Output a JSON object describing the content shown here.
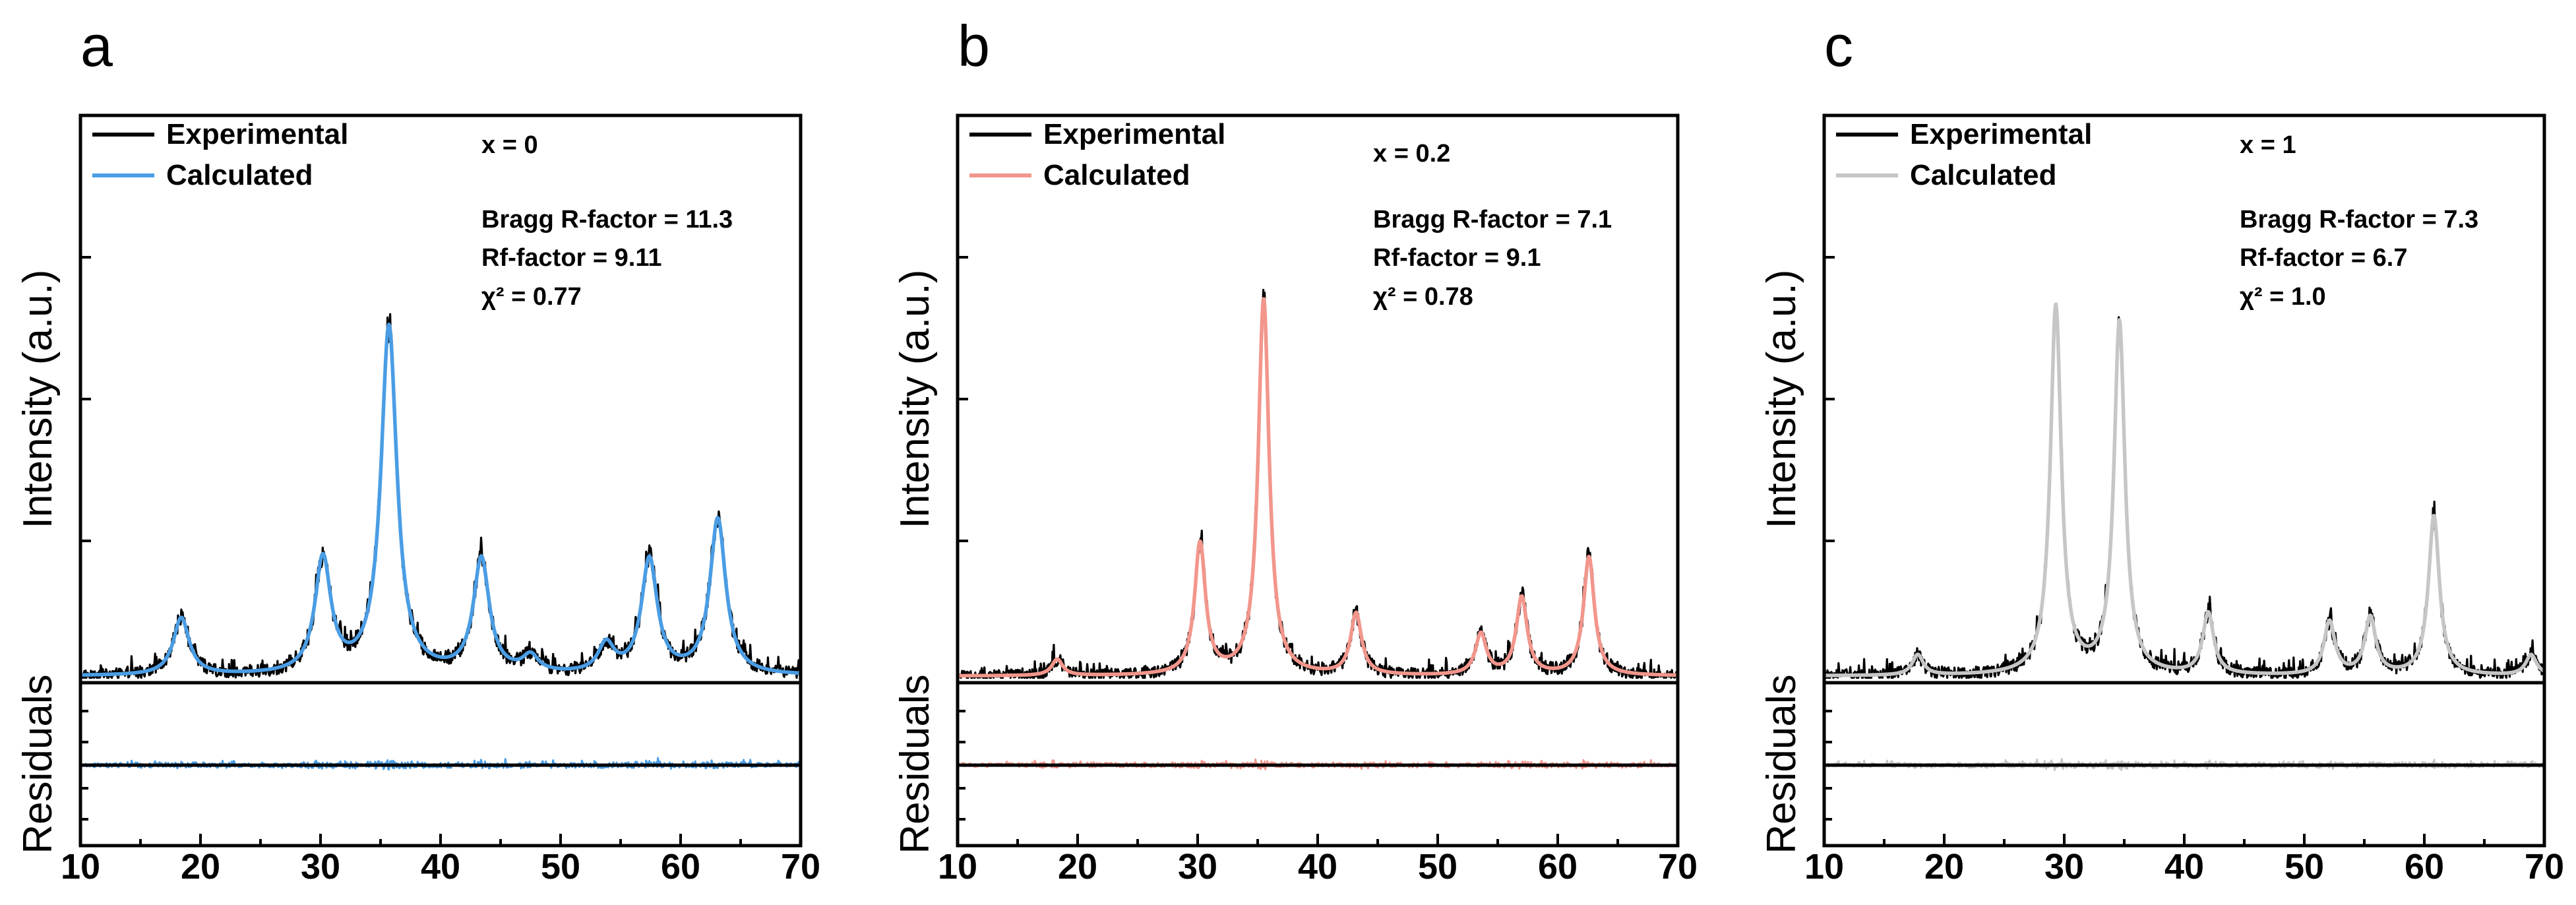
{
  "chart_data": [
    {
      "type": "line",
      "panel": "a",
      "ylabel_top": "Intensity (a.u.)",
      "ylabel_bottom": "Residuals",
      "xlim": [
        10,
        70
      ],
      "xticks": [
        10,
        20,
        30,
        40,
        50,
        60,
        70
      ],
      "legend": [
        {
          "name": "Experimental",
          "color": "#000000"
        },
        {
          "name": "Calculated",
          "color": "#4a9de4"
        }
      ],
      "stats": {
        "composition": "x = 0",
        "bragg": "Bragg R-factor = 11.3",
        "rf": "Rf-factor = 9.11",
        "chi": "χ² = 0.77"
      },
      "calc_color": "#4a9de4",
      "peaks": [
        {
          "pos": 18.4,
          "height": 0.14,
          "width": 0.8
        },
        {
          "pos": 30.2,
          "height": 0.28,
          "width": 0.8
        },
        {
          "pos": 35.7,
          "height": 0.85,
          "width": 0.8
        },
        {
          "pos": 43.4,
          "height": 0.28,
          "width": 0.8
        },
        {
          "pos": 47.5,
          "height": 0.04,
          "width": 0.8
        },
        {
          "pos": 53.8,
          "height": 0.07,
          "width": 0.8
        },
        {
          "pos": 57.4,
          "height": 0.28,
          "width": 0.8
        },
        {
          "pos": 63.1,
          "height": 0.38,
          "width": 0.8
        }
      ]
    },
    {
      "type": "line",
      "panel": "b",
      "ylabel_top": "Intensity (a.u.)",
      "ylabel_bottom": "Residuals",
      "xlim": [
        10,
        70
      ],
      "xticks": [
        10,
        20,
        30,
        40,
        50,
        60,
        70
      ],
      "legend": [
        {
          "name": "Experimental",
          "color": "#000000"
        },
        {
          "name": "Calculated",
          "color": "#f2968c"
        }
      ],
      "stats": {
        "composition": "x = 0.2",
        "bragg": "Bragg R-factor = 7.1",
        "rf": "Rf-factor = 9.1",
        "chi": "χ² = 0.78"
      },
      "calc_color": "#f2968c",
      "peaks": [
        {
          "pos": 18.3,
          "height": 0.04,
          "width": 0.55
        },
        {
          "pos": 30.2,
          "height": 0.32,
          "width": 0.55
        },
        {
          "pos": 35.5,
          "height": 0.92,
          "width": 0.55
        },
        {
          "pos": 43.2,
          "height": 0.15,
          "width": 0.55
        },
        {
          "pos": 53.6,
          "height": 0.1,
          "width": 0.55
        },
        {
          "pos": 57.0,
          "height": 0.19,
          "width": 0.55
        },
        {
          "pos": 62.6,
          "height": 0.29,
          "width": 0.55
        }
      ]
    },
    {
      "type": "line",
      "panel": "c",
      "ylabel_top": "Intensity (a.u.)",
      "ylabel_bottom": "Residuals",
      "xlim": [
        10,
        70
      ],
      "xticks": [
        10,
        20,
        30,
        40,
        50,
        60,
        70
      ],
      "legend": [
        {
          "name": "Experimental",
          "color": "#000000"
        },
        {
          "name": "Calculated",
          "color": "#c6c6c6"
        }
      ],
      "stats": {
        "composition": "x = 1",
        "bragg": "Bragg R-factor = 7.3",
        "rf": "Rf-factor = 6.7",
        "chi": "χ² = 1.0"
      },
      "calc_color": "#c6c6c6",
      "peaks": [
        {
          "pos": 17.8,
          "height": 0.05,
          "width": 0.55
        },
        {
          "pos": 29.3,
          "height": 0.9,
          "width": 0.55
        },
        {
          "pos": 34.6,
          "height": 0.86,
          "width": 0.55
        },
        {
          "pos": 42.0,
          "height": 0.15,
          "width": 0.55
        },
        {
          "pos": 52.1,
          "height": 0.13,
          "width": 0.55
        },
        {
          "pos": 55.5,
          "height": 0.14,
          "width": 0.55
        },
        {
          "pos": 60.8,
          "height": 0.39,
          "width": 0.55
        },
        {
          "pos": 68.9,
          "height": 0.05,
          "width": 0.55
        }
      ]
    }
  ]
}
